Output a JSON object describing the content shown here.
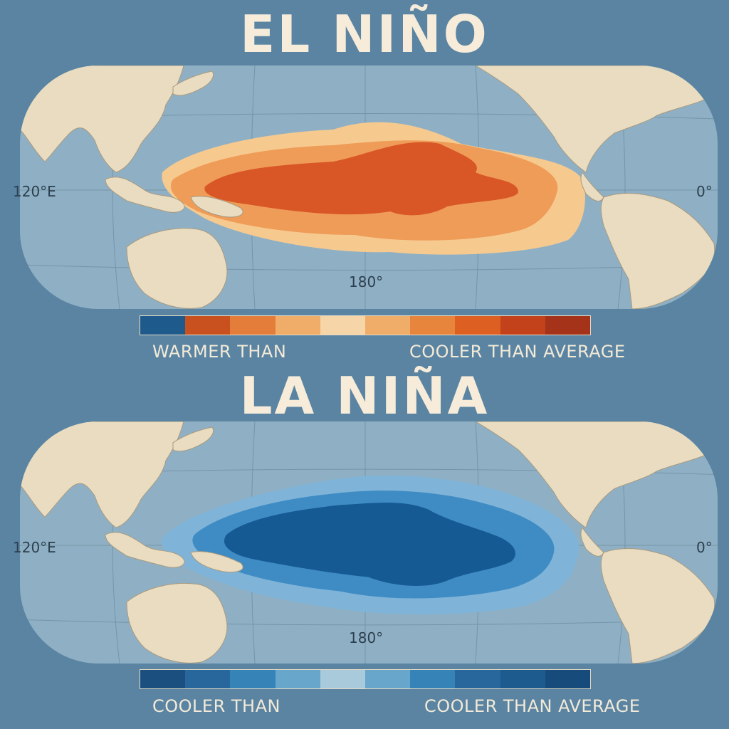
{
  "panels": [
    {
      "title": "EL NIÑO",
      "labels": {
        "west": "120°E",
        "east": "0°",
        "center": "180°"
      },
      "legend": {
        "left_label": "WARMER THAN",
        "right_label": "COOLER THAN AVERAGE",
        "colors": [
          "#1f5a8c",
          "#c9511f",
          "#e57d3a",
          "#f0ad6a",
          "#f6d5a8",
          "#f0ad6a",
          "#e8853d",
          "#dd5f22",
          "#c3421b",
          "#a5331a"
        ]
      },
      "anomaly_colors": [
        "#f6c98f",
        "#ee9c57",
        "#d95626"
      ]
    },
    {
      "title": "LA NIÑA",
      "labels": {
        "west": "120°E",
        "east": "0°",
        "center": "180°"
      },
      "legend": {
        "left_label": "COOLER THAN",
        "right_label": "COOLER THAN AVERAGE",
        "colors": [
          "#1b4f80",
          "#27679b",
          "#3683b8",
          "#68a6cc",
          "#a9cadb",
          "#68a6cc",
          "#3683b8",
          "#27679b",
          "#1d5a8e",
          "#174b7c"
        ]
      },
      "anomaly_colors": [
        "#7fb4d8",
        "#3f8cc4",
        "#165a94"
      ]
    }
  ],
  "colors": {
    "ocean": "#8fb0c4",
    "land": "#e9dcc0",
    "grid": "#6e8ea3",
    "background": "#5a84a2"
  }
}
